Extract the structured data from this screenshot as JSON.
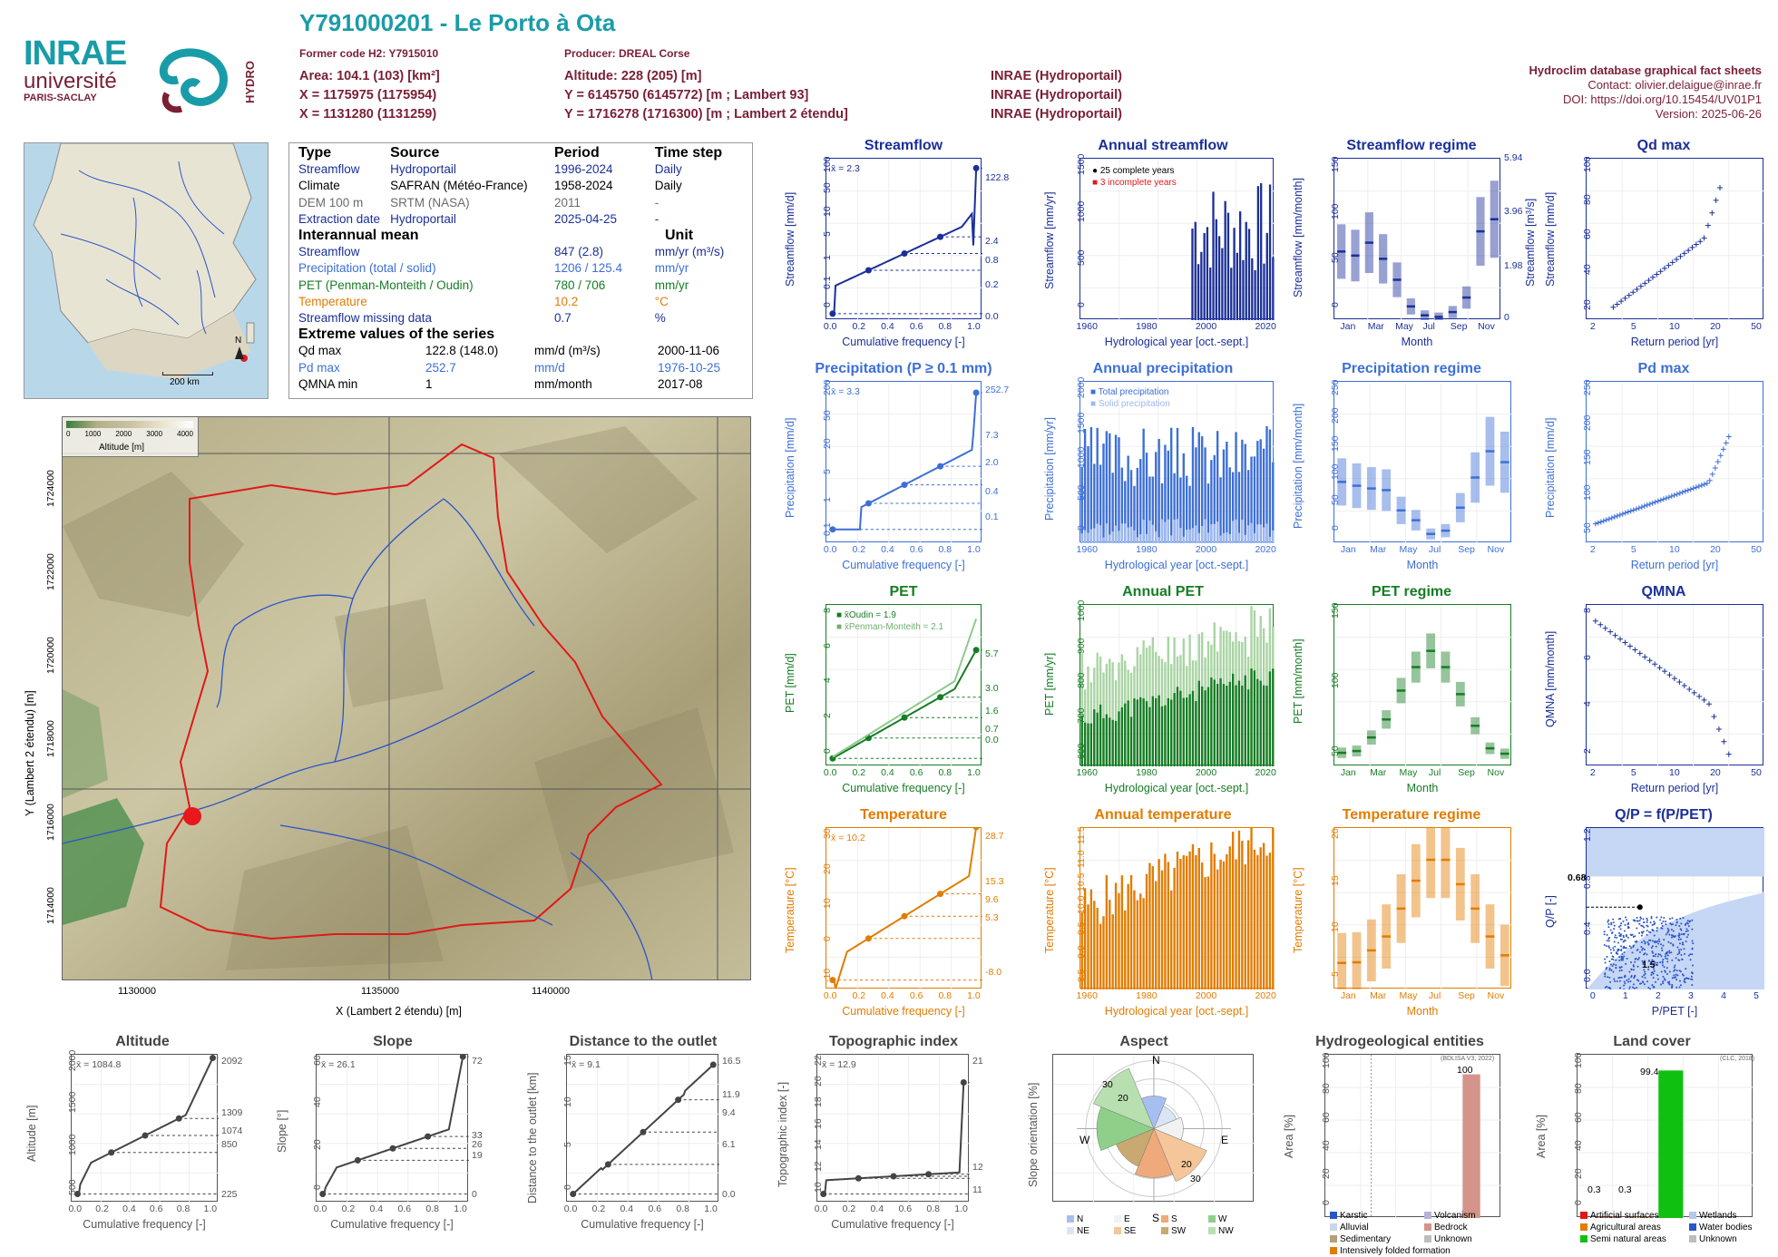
{
  "header": {
    "title": "Y791000201 - Le Porto à Ota",
    "former_code": "Former code H2: Y7915010",
    "producer": "Producer: DREAL Corse",
    "area": "Area: 104.1 (103) [km²]",
    "altitude": "Altitude: 228 (205) [m]",
    "x93": "X = 1175975 (1175954)",
    "y93": "Y = 6145750 (6145772) [m ; Lambert 93]",
    "x2": "X = 1131280 (1131259)",
    "y2": "Y = 1716278 (1716300) [m ; Lambert 2 étendu]",
    "source1": "INRAE (Hydroportail)",
    "source2": "INRAE (Hydroportail)",
    "source3": "INRAE (Hydroportail)",
    "db_title": "Hydroclim database graphical fact sheets",
    "contact": "Contact: olivier.delaigue@inrae.fr",
    "doi": "DOI: https://doi.org/10.15454/UV01P1",
    "version": "Version: 2025-06-26"
  },
  "logos": {
    "inrae": "INRAE",
    "universite": "université",
    "paris_saclay": "PARIS-SACLAY",
    "hydro": "HYDRO"
  },
  "info": {
    "head": {
      "type": "Type",
      "source": "Source",
      "period": "Period",
      "timestep": "Time step"
    },
    "rows": [
      {
        "type": "Streamflow",
        "source": "Hydroportail",
        "period": "1996-2024",
        "step": "Daily",
        "cls": "blue"
      },
      {
        "type": "Climate",
        "source": "SAFRAN (Météo-France)",
        "period": "1958-2024",
        "step": "Daily",
        "cls": ""
      },
      {
        "type": "DEM 100 m",
        "source": "SRTM (NASA)",
        "period": "2011",
        "step": "-",
        "cls": "gray"
      },
      {
        "type": "Extraction date",
        "source": "Hydroportail",
        "period": "2025-04-25",
        "step": "-",
        "cls": "blue"
      }
    ],
    "interannual_title": "Interannual mean",
    "unit_title": "Unit",
    "means": [
      {
        "label": "Streamflow",
        "value": "847 (2.8)",
        "unit": "mm/yr (m³/s)",
        "cls": "blue"
      },
      {
        "label": "Precipitation (total / solid)",
        "value": "1206 / 125.4",
        "unit": "mm/yr",
        "cls": "lblue"
      },
      {
        "label": "PET (Penman-Monteith / Oudin)",
        "value": "780 / 706",
        "unit": "mm/yr",
        "cls": "green"
      },
      {
        "label": "Temperature",
        "value": "10.2",
        "unit": "°C",
        "cls": "orange"
      },
      {
        "label": "Streamflow missing data",
        "value": "0.7",
        "unit": "%",
        "cls": "blue"
      }
    ],
    "extreme_title": "Extreme values of the series",
    "extremes": [
      {
        "label": "Qd max",
        "value": "122.8 (148.0)",
        "unit": "mm/d (m³/s)",
        "date": "2000-11-06",
        "cls": ""
      },
      {
        "label": "Pd max",
        "value": "252.7",
        "unit": "mm/d",
        "date": "1976-10-25",
        "cls": "lblue"
      },
      {
        "label": "QMNA min",
        "value": "1",
        "unit": "mm/month",
        "date": "2017-08",
        "cls": ""
      }
    ]
  },
  "locmap": {
    "scale": "200 km",
    "north": "N"
  },
  "bigmap": {
    "xlabel": "X (Lambert 2 étendu) [m]",
    "ylabel": "Y (Lambert 2 étendu) [m]",
    "xticks": [
      "1130000",
      "1135000",
      "1140000"
    ],
    "yticks": [
      "1714000",
      "1716000",
      "1718000",
      "1720000",
      "1722000",
      "1724000"
    ],
    "legend_title": "Altitude [m]",
    "legend_ticks": [
      "0",
      "1000",
      "2000",
      "3000",
      "4000"
    ]
  },
  "panels": {
    "streamflow": {
      "title": "Streamflow",
      "ylabel": "Streamflow [mm/d]",
      "xlabel": "Cumulative frequency [-]",
      "mean": "x̄ = 2.3",
      "right_ticks": [
        "122.8",
        "2.4",
        "0.8",
        "0.2",
        "0.0"
      ],
      "yticks": [
        "100",
        "50",
        "10",
        "5",
        "1",
        "0.1",
        "0"
      ],
      "xticks": [
        "0.0",
        "0.2",
        "0.4",
        "0.6",
        "0.8",
        "1.0"
      ]
    },
    "annual_streamflow": {
      "title": "Annual streamflow",
      "ylabel": "Streamflow [mm/yr]",
      "xlabel": "Hydrological year [oct.-sept.]",
      "legend1": "25 complete years",
      "legend2": "3 incomplete years",
      "yticks": [
        "1500",
        "1000",
        "500",
        "0"
      ],
      "xticks": [
        "1960",
        "1980",
        "2000",
        "2020"
      ]
    },
    "streamflow_regime": {
      "title": "Streamflow regime",
      "ylabel": "Streamflow [mm/month]",
      "ylabel2": "Streamflow [m³/s]",
      "xlabel": "Month",
      "yticks": [
        "150",
        "100",
        "50",
        "0"
      ],
      "right_ticks": [
        "5.94",
        "3.96",
        "1.98",
        "0"
      ],
      "months": [
        "Jan",
        "Mar",
        "May",
        "Jul",
        "Sep",
        "Nov"
      ]
    },
    "qd_max": {
      "title": "Qd max",
      "ylabel": "Streamflow [mm/d]",
      "xlabel": "Return period [yr]",
      "yticks": [
        "100",
        "80",
        "60",
        "40",
        "20"
      ],
      "xticks": [
        "2",
        "5",
        "10",
        "20",
        "50"
      ]
    },
    "precipitation": {
      "title": "Precipitation (P ≥ 0.1 mm)",
      "ylabel": "Precipitation [mm/d]",
      "xlabel": "Cumulative frequency [-]",
      "mean": "x̄ = 3.3",
      "right_ticks": [
        "252.7",
        "7.3",
        "2.0",
        "0.4",
        "0.1"
      ],
      "yticks": [
        "200",
        "50",
        "20",
        "5",
        "1",
        "0.1"
      ],
      "xticks": [
        "0.0",
        "0.2",
        "0.4",
        "0.6",
        "0.8",
        "1.0"
      ]
    },
    "annual_precipitation": {
      "title": "Annual precipitation",
      "ylabel": "Precipitation [mm/yr]",
      "xlabel": "Hydrological year [oct.-sept.]",
      "legend1": "Total precipitation",
      "legend2": "Solid precipitation",
      "yticks": [
        "2000",
        "1500",
        "1000",
        "500",
        "0"
      ],
      "xticks": [
        "1960",
        "1980",
        "2000",
        "2020"
      ]
    },
    "precipitation_regime": {
      "title": "Precipitation regime",
      "ylabel": "Precipitation [mm/month]",
      "xlabel": "Month",
      "yticks": [
        "250",
        "200",
        "150",
        "100",
        "50",
        "0"
      ],
      "months": [
        "Jan",
        "Mar",
        "May",
        "Jul",
        "Sep",
        "Nov"
      ]
    },
    "pd_max": {
      "title": "Pd max",
      "ylabel": "Precipitation [mm/d]",
      "xlabel": "Return period [yr]",
      "yticks": [
        "250",
        "200",
        "150",
        "100",
        "50"
      ],
      "xticks": [
        "2",
        "5",
        "10",
        "20",
        "50"
      ]
    },
    "pet": {
      "title": "PET",
      "ylabel": "PET [mm/d]",
      "xlabel": "Cumulative frequency [-]",
      "legend1": "x̄Oudin = 1.9",
      "legend2": "x̄Penman-Monteith = 2.1",
      "right_ticks": [
        "5.7",
        "3.0",
        "1.6",
        "0.7",
        "0.0"
      ],
      "yticks": [
        "8",
        "6",
        "4",
        "2",
        "0"
      ],
      "xticks": [
        "0.0",
        "0.2",
        "0.4",
        "0.6",
        "0.8",
        "1.0"
      ]
    },
    "annual_pet": {
      "title": "Annual PET",
      "ylabel": "PET [mm/yr]",
      "xlabel": "Hydrological year [oct.-sept.]",
      "yticks": [
        "1000",
        "900",
        "800",
        "700",
        "600"
      ],
      "xticks": [
        "1960",
        "1980",
        "2000",
        "2020"
      ]
    },
    "pet_regime": {
      "title": "PET regime",
      "ylabel": "PET [mm/month]",
      "xlabel": "Month",
      "yticks": [
        "150",
        "100",
        "50"
      ],
      "months": [
        "Jan",
        "Mar",
        "May",
        "Jul",
        "Sep",
        "Nov"
      ]
    },
    "qmna": {
      "title": "QMNA",
      "ylabel": "QMNA [mm/month]",
      "xlabel": "Return period [yr]",
      "yticks": [
        "8",
        "6",
        "4",
        "2"
      ],
      "xticks": [
        "2",
        "5",
        "10",
        "20",
        "50"
      ]
    },
    "temperature": {
      "title": "Temperature",
      "ylabel": "Temperature [°C]",
      "xlabel": "Cumulative frequency [-]",
      "mean": "x̄ = 10.2",
      "right_ticks": [
        "28.7",
        "15.3",
        "9.6",
        "5.3",
        "-8.0"
      ],
      "yticks": [
        "30",
        "20",
        "10",
        "0",
        "-10"
      ],
      "xticks": [
        "0.0",
        "0.2",
        "0.4",
        "0.6",
        "0.8",
        "1.0"
      ]
    },
    "annual_temperature": {
      "title": "Annual temperature",
      "ylabel": "Temperature [°C]",
      "xlabel": "Hydrological year [oct.-sept.]",
      "yticks": [
        "11.5",
        "11.0",
        "10.5",
        "10.0",
        "9.5",
        "9.0",
        "8.5"
      ],
      "xticks": [
        "1960",
        "1980",
        "2000",
        "2020"
      ]
    },
    "temperature_regime": {
      "title": "Temperature regime",
      "ylabel": "Temperature [°C]",
      "xlabel": "Month",
      "yticks": [
        "20",
        "15",
        "10",
        "5"
      ],
      "months": [
        "Jan",
        "Mar",
        "May",
        "Jul",
        "Sep",
        "Nov"
      ]
    },
    "qp": {
      "title": "Q/P = f(P/PET)",
      "ylabel": "Q/P [-]",
      "xlabel": "P/PET [-]",
      "annot1": "0.68",
      "annot2": "1.5",
      "yticks": [
        "1.2",
        "0.8",
        "0.4",
        "0.0"
      ],
      "xticks": [
        "0",
        "1",
        "2",
        "3",
        "4",
        "5"
      ]
    },
    "altitude": {
      "title": "Altitude",
      "ylabel": "Altitude [m]",
      "xlabel": "Cumulative frequency [-]",
      "mean": "x̄ = 1084.8",
      "right_ticks": [
        "2092",
        "1309",
        "1074",
        "850",
        "225"
      ],
      "yticks": [
        "2000",
        "1500",
        "1000",
        "500"
      ],
      "xticks": [
        "0.0",
        "0.2",
        "0.4",
        "0.6",
        "0.8",
        "1.0"
      ]
    },
    "slope": {
      "title": "Slope",
      "ylabel": "Slope [°]",
      "xlabel": "Cumulative frequency [-]",
      "mean": "x̄ = 26.1",
      "right_ticks": [
        "72",
        "33",
        "26",
        "19",
        "0"
      ],
      "yticks": [
        "60",
        "40",
        "20",
        "0"
      ],
      "xticks": [
        "0.0",
        "0.2",
        "0.4",
        "0.6",
        "0.8",
        "1.0"
      ]
    },
    "distance": {
      "title": "Distance to the outlet",
      "ylabel": "Distance to the outlet [km]",
      "xlabel": "Cumulative frequency [-]",
      "mean": "x̄ = 9.1",
      "right_ticks": [
        "16.5",
        "11.9",
        "9.4",
        "6.1",
        "0.0"
      ],
      "yticks": [
        "15",
        "10",
        "5",
        "0"
      ],
      "xticks": [
        "0.0",
        "0.2",
        "0.4",
        "0.6",
        "0.8",
        "1.0"
      ]
    },
    "topo": {
      "title": "Topographic index",
      "ylabel": "Topographic index [-]",
      "xlabel": "Cumulative frequency [-]",
      "mean": "x̄ = 12.9",
      "right_ticks": [
        "21",
        "12",
        "11"
      ],
      "yticks": [
        "22",
        "20",
        "18",
        "16",
        "14",
        "12",
        "10"
      ],
      "xticks": [
        "0.0",
        "0.2",
        "0.4",
        "0.6",
        "0.8",
        "1.0"
      ]
    },
    "aspect": {
      "title": "Aspect",
      "ylabel": "Slope orientation [%]",
      "n": "N",
      "e": "E",
      "s": "S",
      "w": "W",
      "r1": "20",
      "r2": "30",
      "r3": "20",
      "r4": "30",
      "legend": [
        "N",
        "E",
        "S",
        "W",
        "NE",
        "SE",
        "SW",
        "NW"
      ]
    },
    "hydrogeo": {
      "title": "Hydrogeological entities",
      "ylabel": "Area [%]",
      "source": "(BDLISA V3, 2022)",
      "value_label": "100",
      "yticks": [
        "100",
        "80",
        "60",
        "40",
        "20",
        "0"
      ],
      "legend": [
        "Karstic",
        "Volcanism",
        "Alluvial",
        "Bedrock",
        "Sedimentary",
        "Unknown",
        "Intensively folded formation"
      ]
    },
    "landcover": {
      "title": "Land cover",
      "ylabel": "Area [%]",
      "source": "(CLC, 2018)",
      "v1": "0.3",
      "v2": "0.3",
      "v3": "99.4",
      "yticks": [
        "100",
        "80",
        "60",
        "40",
        "20",
        "0"
      ],
      "legend": [
        "Artificial surfaces",
        "Wetlands",
        "Agricultural areas",
        "Water bodies",
        "Semi natural areas",
        "Unknown"
      ]
    }
  },
  "chart_data": [
    {
      "type": "bar",
      "title": "Streamflow regime",
      "categories": [
        "Jan",
        "Feb",
        "Mar",
        "Apr",
        "May",
        "Jun",
        "Jul",
        "Aug",
        "Sep",
        "Oct",
        "Nov",
        "Dec"
      ],
      "values": [
        85,
        80,
        96,
        76,
        50,
        17,
        6,
        4,
        10,
        28,
        110,
        125
      ]
    },
    {
      "type": "bar",
      "title": "Precipitation regime",
      "categories": [
        "Jan",
        "Feb",
        "Mar",
        "Apr",
        "May",
        "Jun",
        "Jul",
        "Aug",
        "Sep",
        "Oct",
        "Nov",
        "Dec"
      ],
      "values": [
        112,
        105,
        100,
        97,
        60,
        42,
        17,
        23,
        65,
        120,
        168,
        148
      ]
    },
    {
      "type": "bar",
      "title": "PET regime",
      "categories": [
        "Jan",
        "Feb",
        "Mar",
        "Apr",
        "May",
        "Jun",
        "Jul",
        "Aug",
        "Sep",
        "Oct",
        "Nov",
        "Dec"
      ],
      "values": [
        15,
        17,
        32,
        52,
        84,
        110,
        128,
        110,
        80,
        45,
        20,
        14
      ]
    },
    {
      "type": "bar",
      "title": "Temperature regime",
      "categories": [
        "Jan",
        "Feb",
        "Mar",
        "Apr",
        "May",
        "Jun",
        "Jul",
        "Aug",
        "Sep",
        "Oct",
        "Nov",
        "Dec"
      ],
      "values": [
        3.8,
        3.9,
        5.6,
        7.6,
        11.6,
        15.6,
        18.6,
        18.6,
        15.1,
        11.6,
        7.6,
        4.9
      ]
    },
    {
      "type": "bar",
      "title": "Land cover",
      "categories": [
        "Artificial surfaces",
        "Agricultural areas",
        "Semi natural areas"
      ],
      "values": [
        0.3,
        0.3,
        99.4
      ]
    },
    {
      "type": "bar",
      "title": "Hydrogeological entities",
      "categories": [
        "Bedrock"
      ],
      "values": [
        100
      ]
    }
  ]
}
